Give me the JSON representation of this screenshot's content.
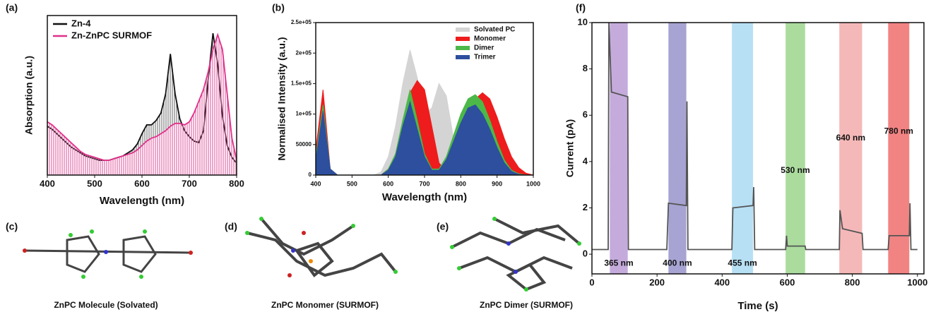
{
  "chart_data": [
    {
      "type": "line",
      "panel": "(a)",
      "xlabel": "Wavelength (nm)",
      "ylabel": "Absorption (a.u.)",
      "xlim": [
        400,
        800
      ],
      "xticks": [
        400,
        500,
        600,
        700,
        800
      ],
      "ylim": [
        0,
        1.08
      ],
      "legend": "upper left",
      "x": [
        400,
        410,
        420,
        430,
        440,
        450,
        460,
        470,
        480,
        490,
        500,
        510,
        520,
        530,
        540,
        550,
        560,
        570,
        580,
        590,
        600,
        610,
        620,
        630,
        640,
        650,
        660,
        670,
        680,
        690,
        700,
        710,
        720,
        730,
        740,
        750,
        760,
        770,
        780,
        790,
        800
      ],
      "series": [
        {
          "name": "Zn-4",
          "color": "#111111",
          "fill": "hatched",
          "values": [
            0.33,
            0.31,
            0.28,
            0.25,
            0.22,
            0.19,
            0.17,
            0.15,
            0.13,
            0.12,
            0.11,
            0.1,
            0.1,
            0.1,
            0.11,
            0.12,
            0.13,
            0.15,
            0.17,
            0.21,
            0.28,
            0.34,
            0.34,
            0.37,
            0.42,
            0.55,
            0.82,
            0.55,
            0.38,
            0.3,
            0.26,
            0.23,
            0.22,
            0.3,
            0.65,
            0.96,
            0.75,
            0.4,
            0.2,
            0.12,
            0.08
          ]
        },
        {
          "name": "Zn-ZnPC SURMOF",
          "color": "#e0308a",
          "fill": "hatched",
          "values": [
            0.36,
            0.34,
            0.31,
            0.28,
            0.25,
            0.22,
            0.19,
            0.16,
            0.14,
            0.13,
            0.12,
            0.11,
            0.1,
            0.1,
            0.11,
            0.12,
            0.13,
            0.14,
            0.15,
            0.17,
            0.2,
            0.23,
            0.25,
            0.26,
            0.28,
            0.3,
            0.33,
            0.35,
            0.35,
            0.34,
            0.36,
            0.42,
            0.5,
            0.58,
            0.7,
            0.85,
            0.95,
            0.85,
            0.55,
            0.25,
            0.1
          ]
        }
      ]
    },
    {
      "type": "area",
      "panel": "(b)",
      "xlabel": "Wavelength (nm)",
      "ylabel": "Normalised Intensity (a.u.)",
      "xlim": [
        400,
        1000
      ],
      "xticks": [
        400,
        500,
        600,
        700,
        800,
        900,
        1000
      ],
      "ylim": [
        0,
        250000
      ],
      "yticks": [
        0,
        50000,
        {
          "value": 100000,
          "label": "1e+05"
        },
        {
          "value": 150000,
          "label": "1.5e+05"
        },
        {
          "value": 200000,
          "label": "2e+05"
        },
        {
          "value": 250000,
          "label": "2.5e+05"
        }
      ],
      "legend": "upper right",
      "x": [
        400,
        420,
        440,
        460,
        480,
        500,
        520,
        540,
        560,
        580,
        600,
        620,
        640,
        660,
        680,
        700,
        720,
        740,
        760,
        780,
        800,
        820,
        840,
        860,
        880,
        900,
        920,
        940,
        960,
        980,
        1000
      ],
      "series": [
        {
          "name": "Solvated PC",
          "color": "#d4d4d4",
          "values": [
            30000,
            100000,
            10000,
            0,
            0,
            0,
            0,
            0,
            0,
            5000,
            30000,
            80000,
            150000,
            205000,
            160000,
            100000,
            110000,
            150000,
            130000,
            60000,
            15000,
            0,
            0,
            0,
            0,
            0,
            0,
            0,
            0,
            0,
            0
          ]
        },
        {
          "name": "Monomer",
          "color": "#ee1c1c",
          "values": [
            40000,
            140000,
            10000,
            0,
            0,
            0,
            0,
            0,
            0,
            0,
            10000,
            30000,
            80000,
            135000,
            155000,
            140000,
            80000,
            20000,
            5000,
            20000,
            50000,
            90000,
            125000,
            135000,
            125000,
            95000,
            60000,
            30000,
            12000,
            3000,
            0
          ]
        },
        {
          "name": "Dimer",
          "color": "#4cb848",
          "values": [
            30000,
            115000,
            10000,
            0,
            0,
            0,
            0,
            0,
            0,
            0,
            10000,
            35000,
            90000,
            140000,
            90000,
            35000,
            10000,
            10000,
            30000,
            65000,
            100000,
            125000,
            132000,
            120000,
            90000,
            55000,
            25000,
            8000,
            2000,
            0,
            0
          ]
        },
        {
          "name": "Trimer",
          "color": "#2d4f9e",
          "values": [
            25000,
            105000,
            10000,
            0,
            0,
            0,
            0,
            0,
            0,
            0,
            8000,
            30000,
            80000,
            120000,
            75000,
            30000,
            8000,
            8000,
            25000,
            55000,
            85000,
            110000,
            115000,
            100000,
            75000,
            45000,
            20000,
            6000,
            1000,
            0,
            0
          ]
        }
      ]
    },
    {
      "type": "line",
      "panel": "(f)",
      "xlabel": "Time (s)",
      "ylabel": "Current (pA)",
      "xlim": [
        0,
        1020
      ],
      "xticks": [
        0,
        200,
        400,
        600,
        800,
        1000
      ],
      "ylim": [
        -0.85,
        10
      ],
      "yticks": [
        0,
        2,
        4,
        6,
        8,
        10
      ],
      "x": [
        0,
        50,
        52,
        60,
        110,
        112,
        230,
        235,
        290,
        292,
        295,
        430,
        433,
        495,
        497,
        500,
        595,
        598,
        600,
        655,
        657,
        760,
        762,
        770,
        830,
        833,
        910,
        913,
        975,
        977,
        980,
        1000
      ],
      "series": [
        {
          "name": null,
          "color": "#555555",
          "values": [
            0.2,
            0.2,
            10,
            7.0,
            6.8,
            0.2,
            0.2,
            2.2,
            2.1,
            6.6,
            0.2,
            0.2,
            2.0,
            2.1,
            2.9,
            0.2,
            0.2,
            0.8,
            0.35,
            0.35,
            0.2,
            0.2,
            1.9,
            1.1,
            0.9,
            0.2,
            0.2,
            0.8,
            0.8,
            2.2,
            0.2,
            0.2
          ]
        }
      ],
      "bands": [
        {
          "label": "365 nm",
          "start": 55,
          "end": 110,
          "color": "#b28fd0"
        },
        {
          "label": "400 nm",
          "start": 235,
          "end": 290,
          "color": "#8a86c4"
        },
        {
          "label": "455 nm",
          "start": 430,
          "end": 495,
          "color": "#9fd6f0"
        },
        {
          "label": "530 nm",
          "start": 595,
          "end": 655,
          "color": "#8fd07e"
        },
        {
          "label": "640 nm",
          "start": 760,
          "end": 830,
          "color": "#f2a0a0"
        },
        {
          "label": "780 nm",
          "start": 910,
          "end": 975,
          "color": "#ee5a5a"
        }
      ]
    }
  ],
  "figures": [
    {
      "panel": "(c)",
      "caption": "ZnPC Molecule (Solvated)"
    },
    {
      "panel": "(d)",
      "caption": "ZnPC Monomer (SURMOF)"
    },
    {
      "panel": "(e)",
      "caption": "ZnPC Dimer (SURMOF)"
    }
  ]
}
